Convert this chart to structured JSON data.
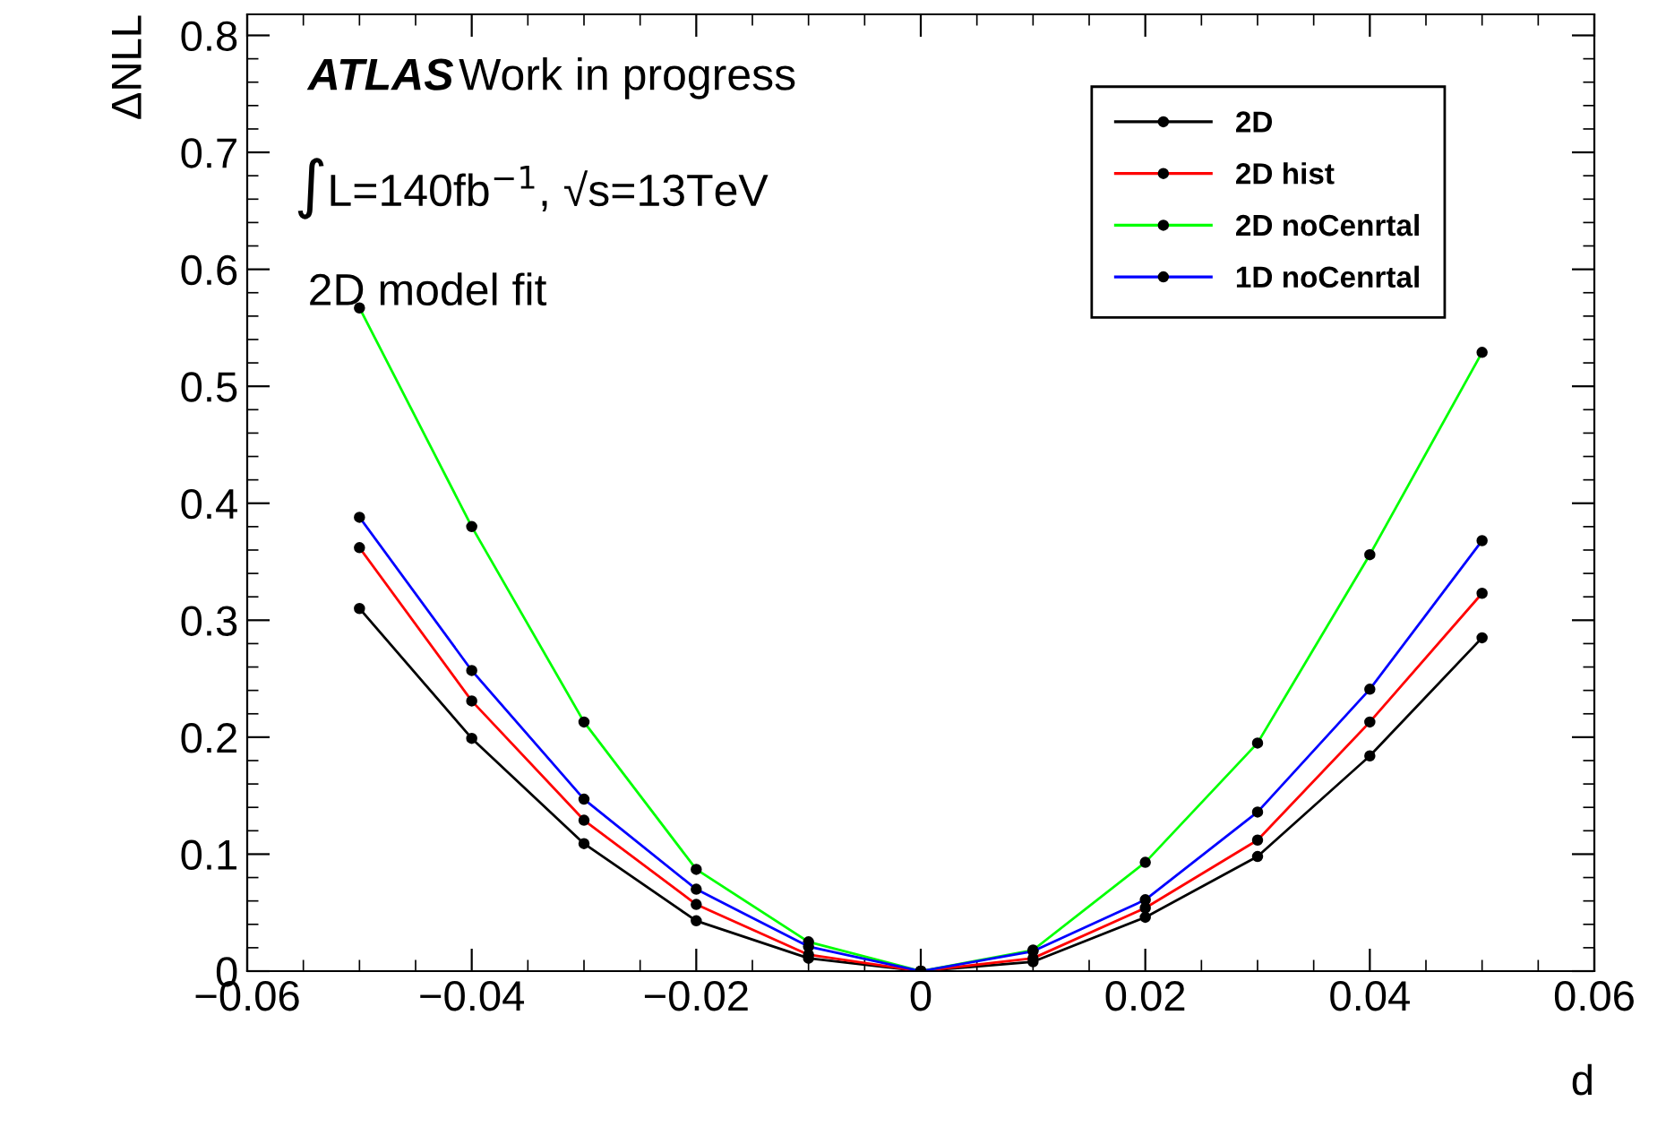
{
  "chart_data": {
    "type": "line",
    "xlabel": "d",
    "ylabel": "ΔNLL",
    "annotations": [
      "ATLAS",
      "Work in progress",
      "∫L=140fb$^{−1}$, √s=13TeV",
      "2D model fit"
    ],
    "x": [
      -0.05,
      -0.04,
      -0.03,
      -0.02,
      -0.01,
      0,
      0.01,
      0.02,
      0.03,
      0.04,
      0.05
    ],
    "series": [
      {
        "name": "2D",
        "color": "#000000",
        "values": [
          0.31,
          0.199,
          0.109,
          0.043,
          0.011,
          0,
          0.008,
          0.046,
          0.098,
          0.184,
          0.285
        ]
      },
      {
        "name": "2D hist",
        "color": "#ff0000",
        "values": [
          0.362,
          0.231,
          0.129,
          0.057,
          0.014,
          0,
          0.011,
          0.054,
          0.112,
          0.213,
          0.323
        ]
      },
      {
        "name": "2D noCenrtal",
        "color": "#00ff00",
        "values": [
          0.567,
          0.38,
          0.213,
          0.087,
          0.025,
          0,
          0.018,
          0.093,
          0.195,
          0.356,
          0.529
        ]
      },
      {
        "name": "1D noCenrtal",
        "color": "#0000ff",
        "values": [
          0.388,
          0.257,
          0.147,
          0.07,
          0.021,
          0,
          0.017,
          0.061,
          0.136,
          0.241,
          0.368
        ]
      }
    ],
    "xlim": [
      -0.06,
      0.06
    ],
    "ylim": [
      0,
      0.818
    ],
    "xticks": [
      -0.06,
      -0.04,
      -0.02,
      0,
      0.02,
      0.04,
      0.06
    ],
    "yticks": [
      0,
      0.1,
      0.2,
      0.3,
      0.4,
      0.5,
      0.6,
      0.7,
      0.8
    ],
    "grid": false,
    "legend": "top right",
    "marker": "circle",
    "line_style": "solid"
  }
}
